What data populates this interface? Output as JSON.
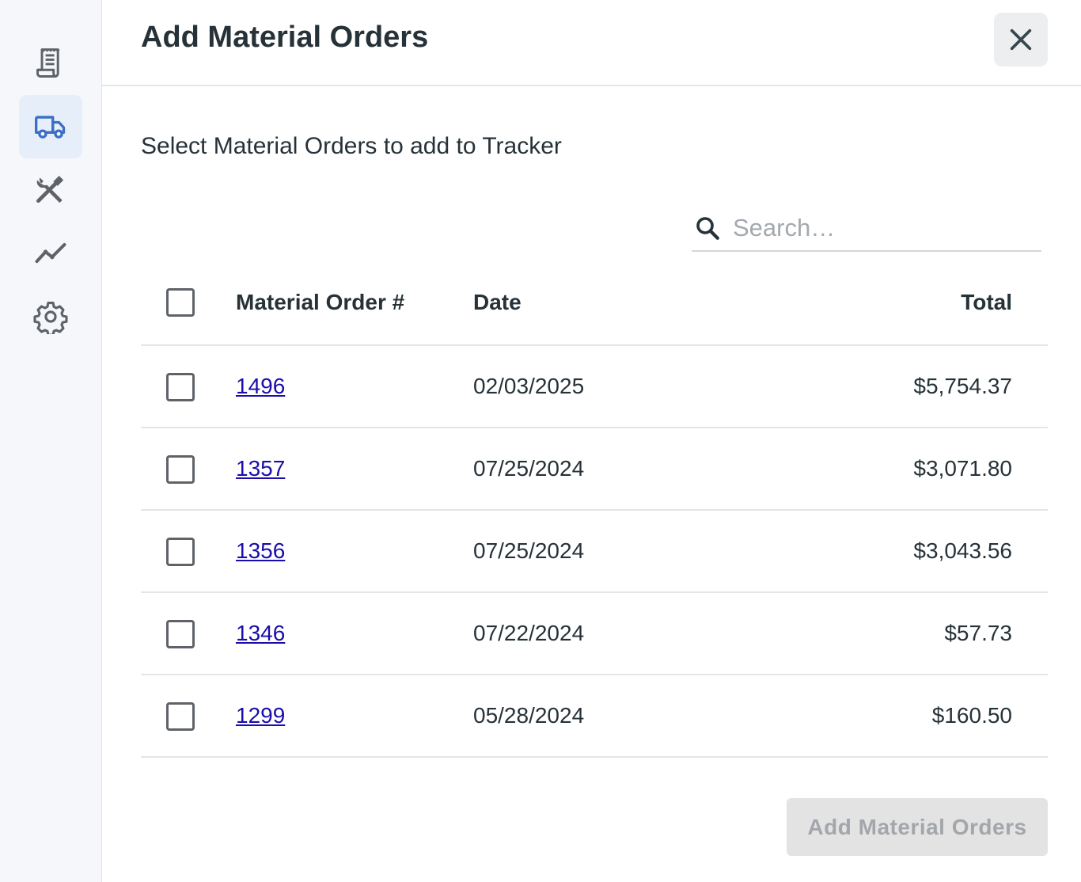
{
  "sidebar": {
    "items": [
      {
        "icon": "receipt-icon",
        "active": false
      },
      {
        "icon": "truck-icon",
        "active": true
      },
      {
        "icon": "tools-icon",
        "active": false
      },
      {
        "icon": "trend-line-icon",
        "active": false
      },
      {
        "icon": "gear-icon",
        "active": false
      }
    ]
  },
  "dialog": {
    "title": "Add Material Orders",
    "subtitle": "Select Material Orders to add to Tracker",
    "search_placeholder": "Search…",
    "submit_label": "Add Material Orders"
  },
  "table": {
    "headers": {
      "order": "Material Order #",
      "date": "Date",
      "total": "Total"
    },
    "rows": [
      {
        "order": "1496",
        "date": "02/03/2025",
        "total": "$5,754.37"
      },
      {
        "order": "1357",
        "date": "07/25/2024",
        "total": "$3,071.80"
      },
      {
        "order": "1356",
        "date": "07/25/2024",
        "total": "$3,043.56"
      },
      {
        "order": "1346",
        "date": "07/22/2024",
        "total": "$57.73"
      },
      {
        "order": "1299",
        "date": "05/28/2024",
        "total": "$160.50"
      }
    ]
  },
  "colors": {
    "accent": "#3a6fc4",
    "icon_gray": "#5f6368",
    "link": "#1a0dab"
  }
}
